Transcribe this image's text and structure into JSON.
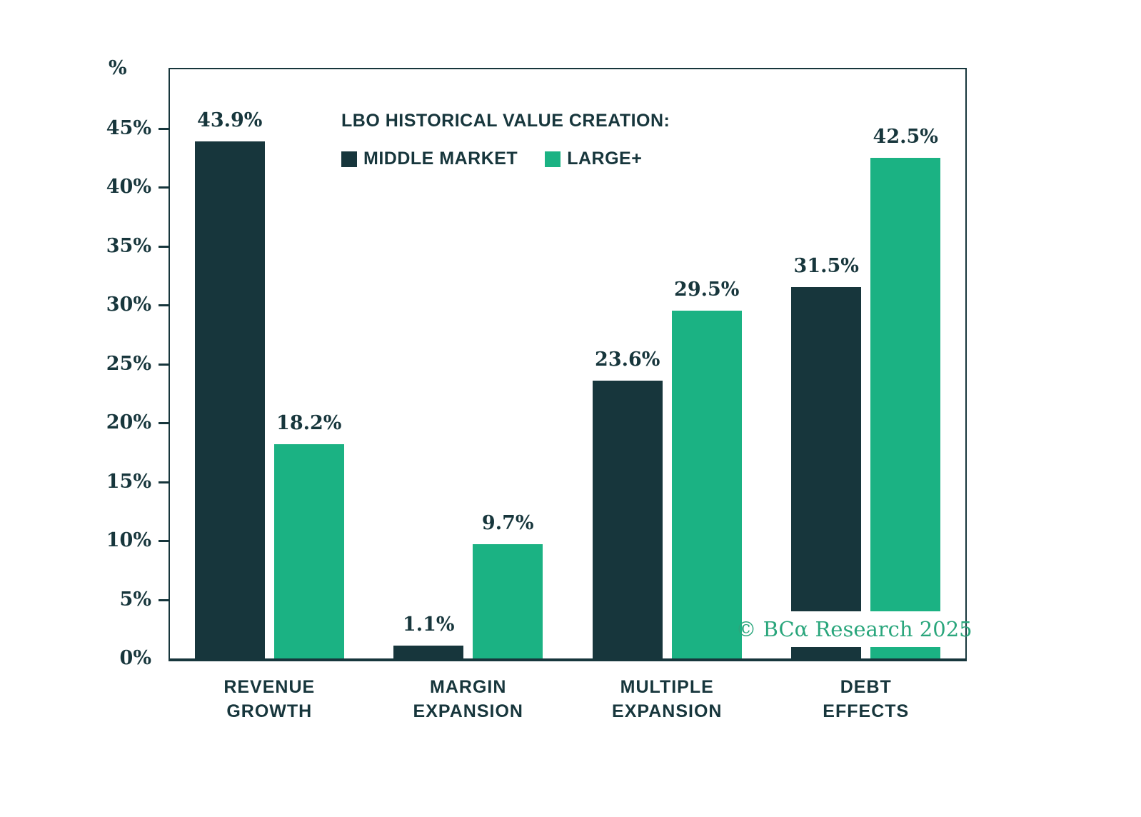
{
  "chart_data": {
    "type": "bar",
    "title": "LBO HISTORICAL VALUE CREATION:",
    "unit_label": "%",
    "value_suffix": "%",
    "categories": [
      {
        "lines": [
          "REVENUE",
          "GROWTH"
        ]
      },
      {
        "lines": [
          "MARGIN",
          "EXPANSION"
        ]
      },
      {
        "lines": [
          "MULTIPLE",
          "EXPANSION"
        ]
      },
      {
        "lines": [
          "DEBT",
          "EFFECTS"
        ]
      }
    ],
    "series": [
      {
        "name": "MIDDLE MARKET",
        "color": "#17363c",
        "values": [
          43.9,
          1.1,
          23.6,
          31.5
        ]
      },
      {
        "name": "LARGE+",
        "color": "#1bb283",
        "values": [
          18.2,
          9.7,
          29.5,
          42.5
        ]
      }
    ],
    "y_ticks": [
      0,
      5,
      10,
      15,
      20,
      25,
      30,
      35,
      40,
      45
    ],
    "ylim": [
      0,
      50
    ],
    "grid": false,
    "legend_position": "top-inside"
  },
  "watermark": {
    "text": "© BCα Research 2025",
    "color": "#2aa67c"
  },
  "colors": {
    "axis": "#17363c",
    "text": "#17363c",
    "middle_market": "#17363c",
    "large_plus": "#1bb283",
    "background": "#ffffff"
  }
}
